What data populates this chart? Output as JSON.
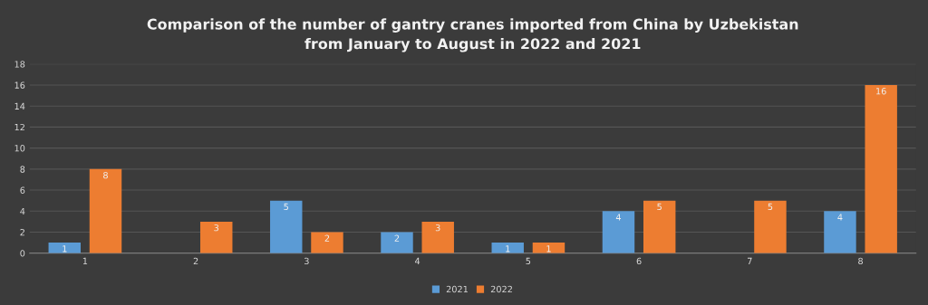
{
  "chart_data": {
    "type": "bar",
    "title": "Comparison of the number of gantry cranes imported from China by Uzbekistan\nfrom January to August in 2022 and 2021",
    "categories": [
      "1",
      "2",
      "3",
      "4",
      "5",
      "6",
      "7",
      "8"
    ],
    "series": [
      {
        "name": "2021",
        "color": "#5b9bd5",
        "values": [
          1,
          null,
          5,
          2,
          1,
          4,
          null,
          4
        ]
      },
      {
        "name": "2022",
        "color": "#ed7d31",
        "values": [
          8,
          3,
          2,
          3,
          1,
          5,
          5,
          16
        ]
      }
    ],
    "ylim": [
      0,
      18
    ],
    "yticks": [
      0,
      2,
      4,
      6,
      8,
      10,
      12,
      14,
      16,
      18
    ],
    "grid": "y",
    "legend": "bottom",
    "data_labels": true
  }
}
